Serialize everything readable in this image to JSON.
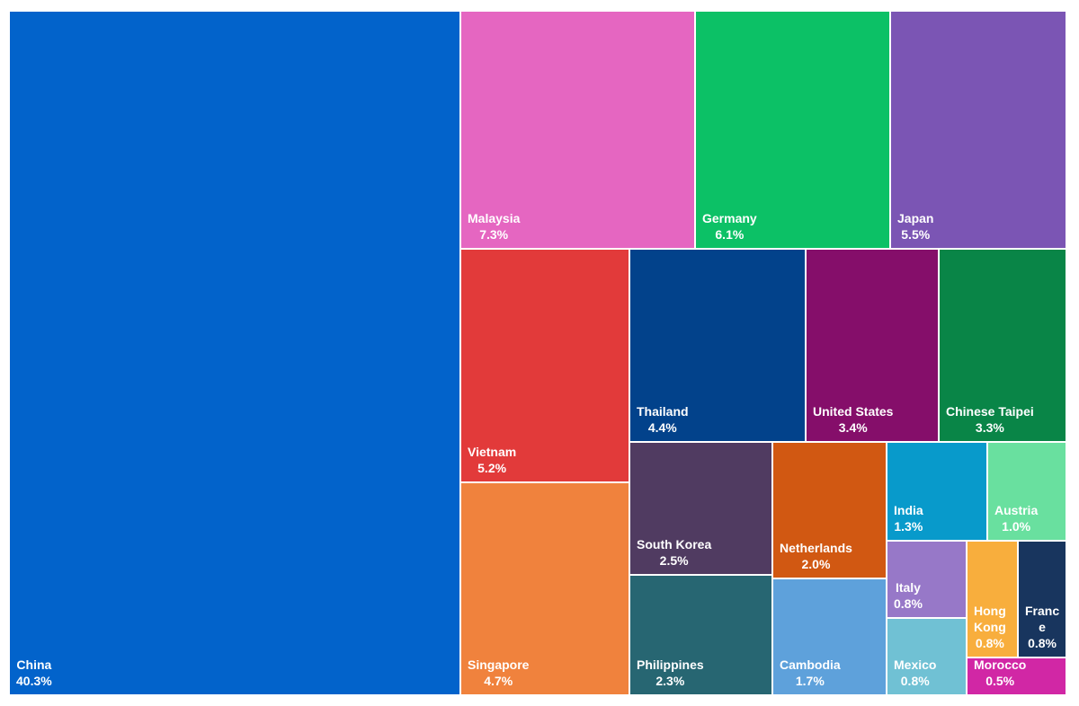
{
  "chart_data": {
    "type": "treemap",
    "unit": "%",
    "items": [
      {
        "name": "China",
        "value": 40.3,
        "label": "40.3%",
        "color": "#0263cb"
      },
      {
        "name": "Malaysia",
        "value": 7.3,
        "label": "7.3%",
        "color": "#e566c1"
      },
      {
        "name": "Germany",
        "value": 6.1,
        "label": "6.1%",
        "color": "#0cc166"
      },
      {
        "name": "Japan",
        "value": 5.5,
        "label": "5.5%",
        "color": "#7b55b4"
      },
      {
        "name": "Vietnam",
        "value": 5.2,
        "label": "5.2%",
        "color": "#e23a3a"
      },
      {
        "name": "Singapore",
        "value": 4.7,
        "label": "4.7%",
        "color": "#f0823d"
      },
      {
        "name": "Thailand",
        "value": 4.4,
        "label": "4.4%",
        "color": "#02428b"
      },
      {
        "name": "United States",
        "value": 3.4,
        "label": "3.4%",
        "color": "#850e6a"
      },
      {
        "name": "Chinese Taipei",
        "value": 3.3,
        "label": "3.3%",
        "color": "#098547"
      },
      {
        "name": "South Korea",
        "value": 2.5,
        "label": "2.5%",
        "color": "#503b61"
      },
      {
        "name": "Philippines",
        "value": 2.3,
        "label": "2.3%",
        "color": "#276672"
      },
      {
        "name": "Netherlands",
        "value": 2.0,
        "label": "2.0%",
        "color": "#d15812"
      },
      {
        "name": "Cambodia",
        "value": 1.7,
        "label": "1.7%",
        "color": "#5ea1db"
      },
      {
        "name": "India",
        "value": 1.3,
        "label": "1.3%",
        "color": "#089acb"
      },
      {
        "name": "Austria",
        "value": 1.0,
        "label": "1.0%",
        "color": "#69e09f"
      },
      {
        "name": "Italy",
        "value": 0.8,
        "label": "0.8%",
        "color": "#9778c8"
      },
      {
        "name": "Mexico",
        "value": 0.8,
        "label": "0.8%",
        "color": "#70c1d4"
      },
      {
        "name": "Hong Kong",
        "value": 0.8,
        "label": "0.8%",
        "color": "#f8ae3d"
      },
      {
        "name": "France",
        "value": 0.8,
        "label": "0.8%",
        "color": "#18355e"
      },
      {
        "name": "Morocco",
        "value": 0.5,
        "label": "0.5%",
        "color": "#d127a5"
      }
    ]
  }
}
